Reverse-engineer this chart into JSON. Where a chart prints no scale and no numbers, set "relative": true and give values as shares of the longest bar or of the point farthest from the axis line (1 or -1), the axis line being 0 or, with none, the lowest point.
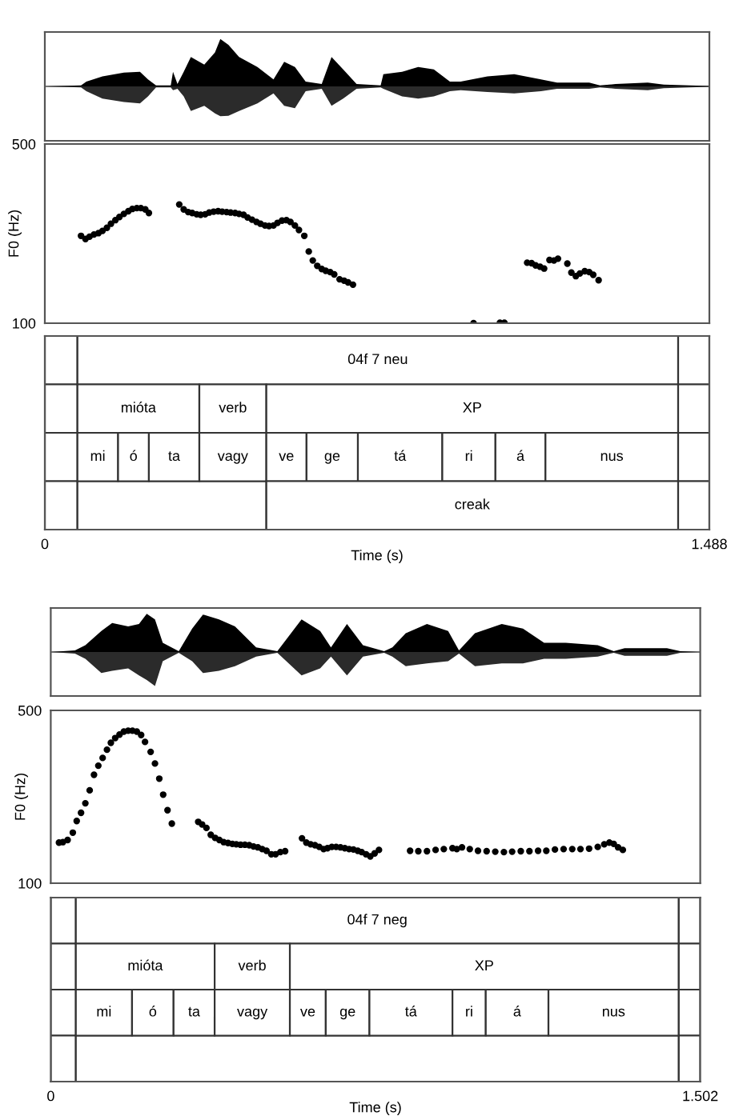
{
  "chart_data": [
    {
      "type": "area",
      "relative": true,
      "xlim": [
        0,
        1.488
      ],
      "tick_labels": false,
      "x": [
        0,
        0.081,
        0.093,
        0.129,
        0.177,
        0.213,
        0.231,
        0.249,
        0.282,
        0.287,
        0.297,
        0.311,
        0.327,
        0.357,
        0.381,
        0.393,
        0.411,
        0.435,
        0.476,
        0.512,
        0.536,
        0.56,
        0.584,
        0.62,
        0.642,
        0.668,
        0.698,
        0.752,
        0.758,
        0.8,
        0.836,
        0.871,
        0.907,
        0.931,
        0.991,
        1.051,
        1.111,
        1.147,
        1.219,
        1.243,
        1.278,
        1.35,
        1.386,
        1.488
      ],
      "series": [
        {
          "color": "#000000",
          "values": [
            0,
            0.02,
            0.1,
            0.21,
            0.29,
            0.31,
            0.15,
            0.02,
            0.02,
            0.31,
            0.05,
            0.31,
            0.62,
            0.46,
            0.72,
            1,
            0.88,
            0.62,
            0.41,
            0.15,
            0.52,
            0.41,
            0.1,
            0.05,
            0.62,
            0.36,
            0.05,
            0.02,
            0.26,
            0.31,
            0.41,
            0.36,
            0.1,
            0.1,
            0.21,
            0.26,
            0.15,
            0.08,
            0.08,
            0.02,
            0.05,
            0.08,
            0.04,
            0.01
          ]
        },
        {
          "color": "#2b2b2b",
          "values": [
            0,
            -0.02,
            -0.1,
            -0.26,
            -0.33,
            -0.36,
            -0.21,
            -0.02,
            -0.02,
            -0.08,
            -0.05,
            -0.21,
            -0.52,
            -0.41,
            -0.57,
            -0.63,
            -0.62,
            -0.52,
            -0.36,
            -0.15,
            -0.41,
            -0.46,
            -0.1,
            -0.05,
            -0.41,
            -0.26,
            -0.05,
            -0.02,
            -0.05,
            -0.21,
            -0.26,
            -0.21,
            -0.1,
            -0.08,
            -0.12,
            -0.15,
            -0.1,
            -0.05,
            -0.05,
            -0.02,
            -0.05,
            -0.08,
            -0.04,
            -0.01
          ]
        }
      ]
    },
    {
      "type": "scatter",
      "ylabel": "F0 (Hz)",
      "xlim": [
        0,
        1.488
      ],
      "ylim": [
        100,
        500
      ],
      "yticks": [
        100,
        500
      ],
      "tick_labels": "y",
      "marker": "circle",
      "series": [
        {
          "color": "#000000",
          "x": [
            0.081,
            0.091,
            0.1,
            0.11,
            0.12,
            0.129,
            0.139,
            0.148,
            0.158,
            0.167,
            0.177,
            0.187,
            0.196,
            0.206,
            0.215,
            0.225,
            0.233,
            0.301,
            0.311,
            0.321,
            0.33,
            0.34,
            0.349,
            0.359,
            0.368,
            0.378,
            0.388,
            0.397,
            0.407,
            0.416,
            0.426,
            0.435,
            0.445,
            0.454,
            0.464,
            0.474,
            0.483,
            0.493,
            0.502,
            0.512,
            0.521,
            0.531,
            0.541,
            0.55,
            0.56,
            0.569,
            0.581,
            0.591,
            0.6,
            0.61,
            0.62,
            0.629,
            0.639,
            0.648,
            0.66,
            0.67,
            0.679,
            0.69,
            0.96,
            1.019,
            1.029,
            1.08,
            1.09,
            1.099,
            1.109,
            1.118,
            1.13,
            1.14,
            1.149,
            1.17,
            1.179,
            1.189,
            1.198,
            1.209,
            1.219,
            1.228,
            1.24
          ],
          "values": [
            295,
            288,
            293,
            298,
            301,
            306,
            313,
            322,
            330,
            337,
            344,
            350,
            355,
            357,
            357,
            354,
            346,
            365,
            354,
            348,
            346,
            343,
            342,
            343,
            347,
            349,
            350,
            349,
            348,
            347,
            346,
            344,
            342,
            336,
            331,
            326,
            322,
            318,
            317,
            318,
            324,
            329,
            330,
            326,
            318,
            308,
            295,
            260,
            240,
            228,
            221,
            217,
            214,
            209,
            198,
            195,
            191,
            186,
            100,
            101,
            101,
            235,
            234,
            229,
            226,
            222,
            241,
            240,
            244,
            233,
            213,
            205,
            211,
            216,
            214,
            208,
            196
          ]
        }
      ]
    },
    {
      "type": "bar",
      "orientation": "horizontal",
      "xlabel": "Time (s)",
      "xlim": [
        0,
        1.488
      ],
      "xticks": [
        0,
        1.488
      ],
      "tick_labels": "x",
      "categories": [
        null,
        null,
        null,
        null
      ],
      "series": [
        {
          "color": "#ffffff",
          "values": [
            0.073,
            0.073,
            0.073,
            0.073
          ],
          "base": [
            0,
            0,
            0,
            0
          ]
        },
        {
          "color": "#ffffff",
          "values": [
            0.07,
            0.07,
            0.07,
            0.07
          ],
          "base": [
            1.418,
            1.418,
            1.418,
            1.418
          ]
        },
        {
          "color": "#ffffff",
          "values": [
            null,
            null,
            null,
            0.423
          ],
          "base": [
            null,
            null,
            null,
            0.073
          ]
        },
        {
          "name": "04f 7 neu",
          "color": "#ffffff",
          "values": [
            1.345,
            null,
            null,
            null
          ],
          "base": [
            0.073,
            null,
            null,
            null
          ]
        },
        {
          "name": "mióta",
          "color": "#ffffff",
          "values": [
            null,
            0.273,
            null,
            null
          ],
          "base": [
            null,
            0.073,
            null,
            null
          ]
        },
        {
          "name": "verb",
          "color": "#ffffff",
          "values": [
            null,
            0.15,
            null,
            null
          ],
          "base": [
            null,
            0.346,
            null,
            null
          ]
        },
        {
          "name": "XP",
          "color": "#ffffff",
          "values": [
            null,
            0.922,
            null,
            null
          ],
          "base": [
            null,
            0.496,
            null,
            null
          ]
        },
        {
          "name": "mi",
          "color": "#ffffff",
          "values": [
            null,
            null,
            0.091,
            null
          ],
          "base": [
            null,
            null,
            0.073,
            null
          ]
        },
        {
          "name": "ó",
          "color": "#ffffff",
          "values": [
            null,
            null,
            0.069,
            null
          ],
          "base": [
            null,
            null,
            0.164,
            null
          ]
        },
        {
          "name": "ta",
          "color": "#ffffff",
          "values": [
            null,
            null,
            0.113,
            null
          ],
          "base": [
            null,
            null,
            0.233,
            null
          ]
        },
        {
          "name": "vagy",
          "color": "#ffffff",
          "values": [
            null,
            null,
            0.15,
            null
          ],
          "base": [
            null,
            null,
            0.346,
            null
          ]
        },
        {
          "name": "ve",
          "color": "#ffffff",
          "values": [
            null,
            null,
            0.09,
            null
          ],
          "base": [
            null,
            null,
            0.496,
            null
          ]
        },
        {
          "name": "ge",
          "color": "#ffffff",
          "values": [
            null,
            null,
            0.115,
            null
          ],
          "base": [
            null,
            null,
            0.586,
            null
          ]
        },
        {
          "name": "tá",
          "color": "#ffffff",
          "values": [
            null,
            null,
            0.189,
            null
          ],
          "base": [
            null,
            null,
            0.701,
            null
          ]
        },
        {
          "name": "ri",
          "color": "#ffffff",
          "values": [
            null,
            null,
            0.119,
            null
          ],
          "base": [
            null,
            null,
            0.89,
            null
          ]
        },
        {
          "name": "á",
          "color": "#ffffff",
          "values": [
            null,
            null,
            0.112,
            null
          ],
          "base": [
            null,
            null,
            1.009,
            null
          ]
        },
        {
          "name": "nus",
          "color": "#ffffff",
          "values": [
            null,
            null,
            0.297,
            null
          ],
          "base": [
            null,
            null,
            1.121,
            null
          ]
        },
        {
          "name": "creak",
          "color": "#ffffff",
          "values": [
            null,
            null,
            null,
            0.922
          ],
          "base": [
            null,
            null,
            null,
            0.496
          ]
        }
      ]
    },
    {
      "type": "area",
      "relative": true,
      "xlim": [
        0,
        1.502
      ],
      "tick_labels": false,
      "x": [
        0,
        0.056,
        0.08,
        0.117,
        0.142,
        0.179,
        0.204,
        0.222,
        0.241,
        0.259,
        0.296,
        0.327,
        0.352,
        0.389,
        0.426,
        0.475,
        0.524,
        0.58,
        0.623,
        0.648,
        0.685,
        0.722,
        0.771,
        0.79,
        0.821,
        0.87,
        0.919,
        0.944,
        0.981,
        1.043,
        1.092,
        1.141,
        1.191,
        1.265,
        1.302,
        1.327,
        1.425,
        1.456,
        1.502
      ],
      "series": [
        {
          "color": "#000000",
          "values": [
            0,
            0.04,
            0.18,
            0.55,
            0.76,
            0.67,
            0.73,
            1,
            0.85,
            0.24,
            0.02,
            0.61,
            0.98,
            0.85,
            0.67,
            0.12,
            0.02,
            0.85,
            0.55,
            0.12,
            0.73,
            0.18,
            0.02,
            0.12,
            0.49,
            0.73,
            0.55,
            0.04,
            0.49,
            0.73,
            0.61,
            0.24,
            0.24,
            0.18,
            0.02,
            0.1,
            0.1,
            0.02,
            0
          ]
        },
        {
          "color": "#2b2b2b",
          "values": [
            0,
            -0.04,
            -0.18,
            -0.55,
            -0.49,
            -0.43,
            -0.61,
            -0.73,
            -0.89,
            -0.24,
            -0.02,
            -0.24,
            -0.55,
            -0.49,
            -0.37,
            -0.12,
            -0.02,
            -0.61,
            -0.43,
            -0.12,
            -0.61,
            -0.12,
            -0.02,
            -0.12,
            -0.37,
            -0.3,
            -0.24,
            -0.04,
            -0.37,
            -0.3,
            -0.3,
            -0.18,
            -0.18,
            -0.12,
            -0.02,
            -0.1,
            -0.1,
            -0.02,
            0
          ]
        }
      ]
    },
    {
      "type": "scatter",
      "ylabel": "F0 (Hz)",
      "xlim": [
        0,
        1.502
      ],
      "ylim": [
        100,
        500
      ],
      "yticks": [
        100,
        500
      ],
      "tick_labels": "y",
      "marker": "circle",
      "series": [
        {
          "color": "#000000",
          "x": [
            0.019,
            0.028,
            0.039,
            0.051,
            0.06,
            0.07,
            0.08,
            0.09,
            0.1,
            0.11,
            0.12,
            0.13,
            0.139,
            0.149,
            0.159,
            0.169,
            0.179,
            0.189,
            0.199,
            0.209,
            0.218,
            0.231,
            0.241,
            0.251,
            0.26,
            0.27,
            0.28,
            0.341,
            0.35,
            0.36,
            0.37,
            0.38,
            0.39,
            0.4,
            0.41,
            0.42,
            0.429,
            0.439,
            0.449,
            0.459,
            0.469,
            0.479,
            0.489,
            0.499,
            0.51,
            0.52,
            0.531,
            0.542,
            0.581,
            0.591,
            0.601,
            0.611,
            0.621,
            0.631,
            0.64,
            0.65,
            0.66,
            0.67,
            0.68,
            0.69,
            0.7,
            0.71,
            0.719,
            0.729,
            0.739,
            0.749,
            0.759,
            0.831,
            0.85,
            0.87,
            0.89,
            0.909,
            0.929,
            0.939,
            0.951,
            0.969,
            0.988,
            1.008,
            1.028,
            1.048,
            1.067,
            1.087,
            1.107,
            1.127,
            1.146,
            1.166,
            1.186,
            1.206,
            1.225,
            1.245,
            1.265,
            1.28,
            1.292,
            1.302,
            1.312,
            1.323
          ],
          "values": [
            194,
            195,
            200,
            217,
            244,
            263,
            285,
            315,
            351,
            372,
            390,
            409,
            425,
            436,
            444,
            451,
            453,
            453,
            451,
            443,
            427,
            404,
            377,
            342,
            305,
            269,
            238,
            242,
            236,
            228,
            212,
            205,
            200,
            195,
            193,
            191,
            190,
            189,
            189,
            188,
            185,
            183,
            179,
            175,
            167,
            167,
            172,
            174,
            204,
            194,
            190,
            188,
            184,
            179,
            181,
            184,
            184,
            183,
            181,
            179,
            178,
            175,
            172,
            167,
            162,
            169,
            177,
            175,
            174,
            174,
            177,
            179,
            181,
            179,
            183,
            179,
            175,
            174,
            173,
            172,
            173,
            174,
            174,
            175,
            175,
            178,
            179,
            179,
            179,
            180,
            184,
            190,
            194,
            191,
            183,
            177
          ]
        }
      ]
    },
    {
      "type": "bar",
      "orientation": "horizontal",
      "xlabel": "Time (s)",
      "xlim": [
        0,
        1.502
      ],
      "xticks": [
        0,
        1.502
      ],
      "tick_labels": "x",
      "categories": [
        null,
        null,
        null,
        null
      ],
      "series": [
        {
          "color": "#ffffff",
          "values": [
            0.058,
            0.058,
            0.058,
            0.058
          ],
          "base": [
            0,
            0,
            0,
            0
          ]
        },
        {
          "color": "#ffffff",
          "values": [
            0.05,
            0.05,
            0.05,
            0.05
          ],
          "base": [
            1.452,
            1.452,
            1.452,
            1.452
          ]
        },
        {
          "color": "#ffffff",
          "values": [
            null,
            null,
            null,
            1.394
          ],
          "base": [
            null,
            null,
            null,
            0.058
          ]
        },
        {
          "name": "04f 7 neg",
          "color": "#ffffff",
          "values": [
            1.394,
            null,
            null,
            null
          ],
          "base": [
            0.058,
            null,
            null,
            null
          ]
        },
        {
          "name": "mióta",
          "color": "#ffffff",
          "values": [
            null,
            0.321,
            null,
            null
          ],
          "base": [
            null,
            0.058,
            null,
            null
          ]
        },
        {
          "name": "verb",
          "color": "#ffffff",
          "values": [
            null,
            0.174,
            null,
            null
          ],
          "base": [
            null,
            0.379,
            null,
            null
          ]
        },
        {
          "name": "XP",
          "color": "#ffffff",
          "values": [
            null,
            0.899,
            null,
            null
          ],
          "base": [
            null,
            0.553,
            null,
            null
          ]
        },
        {
          "name": "mi",
          "color": "#ffffff",
          "values": [
            null,
            null,
            0.13,
            null
          ],
          "base": [
            null,
            null,
            0.058,
            null
          ]
        },
        {
          "name": "ó",
          "color": "#ffffff",
          "values": [
            null,
            null,
            0.096,
            null
          ],
          "base": [
            null,
            null,
            0.188,
            null
          ]
        },
        {
          "name": "ta",
          "color": "#ffffff",
          "values": [
            null,
            null,
            0.095,
            null
          ],
          "base": [
            null,
            null,
            0.284,
            null
          ]
        },
        {
          "name": "vagy",
          "color": "#ffffff",
          "values": [
            null,
            null,
            0.174,
            null
          ],
          "base": [
            null,
            null,
            0.379,
            null
          ]
        },
        {
          "name": "ve",
          "color": "#ffffff",
          "values": [
            null,
            null,
            0.083,
            null
          ],
          "base": [
            null,
            null,
            0.553,
            null
          ]
        },
        {
          "name": "ge",
          "color": "#ffffff",
          "values": [
            null,
            null,
            0.101,
            null
          ],
          "base": [
            null,
            null,
            0.636,
            null
          ]
        },
        {
          "name": "tá",
          "color": "#ffffff",
          "values": [
            null,
            null,
            0.192,
            null
          ],
          "base": [
            null,
            null,
            0.737,
            null
          ]
        },
        {
          "name": "ri",
          "color": "#ffffff",
          "values": [
            null,
            null,
            0.077,
            null
          ],
          "base": [
            null,
            null,
            0.929,
            null
          ]
        },
        {
          "name": "á",
          "color": "#ffffff",
          "values": [
            null,
            null,
            0.145,
            null
          ],
          "base": [
            null,
            null,
            1.006,
            null
          ]
        },
        {
          "name": "nus",
          "color": "#ffffff",
          "values": [
            null,
            null,
            0.301,
            null
          ],
          "base": [
            null,
            null,
            1.151,
            null
          ]
        }
      ]
    }
  ]
}
